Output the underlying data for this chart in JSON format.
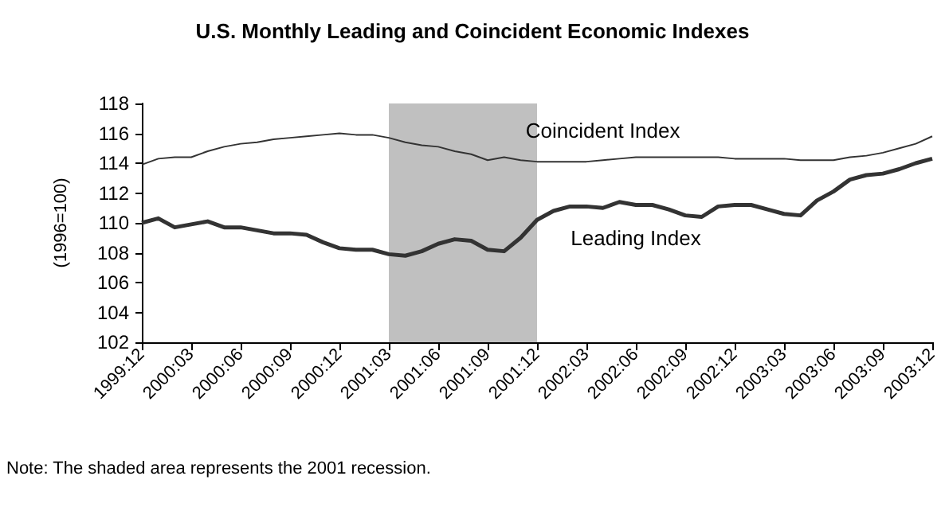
{
  "chart_data": {
    "type": "line",
    "title": "U.S. Monthly Leading and Coincident Economic Indexes",
    "ylabel": "(1996=100)",
    "categories": [
      "1999:12",
      null,
      null,
      "2000:03",
      null,
      null,
      "2000:06",
      null,
      null,
      "2000:09",
      null,
      null,
      "2000:12",
      null,
      null,
      "2001:03",
      null,
      null,
      "2001:06",
      null,
      null,
      "2001:09",
      null,
      null,
      "2001:12",
      null,
      null,
      "2002:03",
      null,
      null,
      "2002:06",
      null,
      null,
      "2002:09",
      null,
      null,
      "2002:12",
      null,
      null,
      "2003:03",
      null,
      null,
      "2003:06",
      null,
      null,
      "2003:09",
      null,
      null,
      "2003:12"
    ],
    "series": [
      {
        "name": "Coincident Index",
        "color": "#333333",
        "values": [
          113.9,
          114.3,
          114.4,
          114.4,
          114.8,
          115.1,
          115.3,
          115.4,
          115.6,
          115.7,
          115.8,
          115.9,
          116.0,
          115.9,
          115.9,
          115.7,
          115.4,
          115.2,
          115.1,
          114.8,
          114.6,
          114.2,
          114.4,
          114.2,
          114.1,
          114.1,
          114.1,
          114.1,
          114.2,
          114.3,
          114.4,
          114.4,
          114.4,
          114.4,
          114.4,
          114.4,
          114.3,
          114.3,
          114.3,
          114.3,
          114.2,
          114.2,
          114.2,
          114.4,
          114.5,
          114.7,
          115.0,
          115.3,
          115.8
        ]
      },
      {
        "name": "Leading Index",
        "color": "#333333",
        "values": [
          110.0,
          110.3,
          109.7,
          109.9,
          110.1,
          109.7,
          109.7,
          109.5,
          109.3,
          109.3,
          109.2,
          108.7,
          108.3,
          108.2,
          108.2,
          107.9,
          107.8,
          108.1,
          108.6,
          108.9,
          108.8,
          108.2,
          108.1,
          109.0,
          110.2,
          110.8,
          111.1,
          111.1,
          111.0,
          111.4,
          111.2,
          111.2,
          110.9,
          110.5,
          110.4,
          111.1,
          111.2,
          111.2,
          110.9,
          110.6,
          110.5,
          111.5,
          112.1,
          112.9,
          113.2,
          113.3,
          113.6,
          114.0,
          114.3
        ]
      }
    ],
    "ylim": [
      102,
      118
    ],
    "yticks": [
      102,
      104,
      106,
      108,
      110,
      112,
      114,
      116,
      118
    ],
    "bands": [
      {
        "axis": "x",
        "from": "2001:03",
        "to": "2001:12",
        "color": "#c0c0c0"
      }
    ],
    "annotations": [
      "Note: The shaded area represents the 2001 recession."
    ],
    "legend": false,
    "grid": false,
    "marker": "none",
    "line_style": "solid"
  }
}
